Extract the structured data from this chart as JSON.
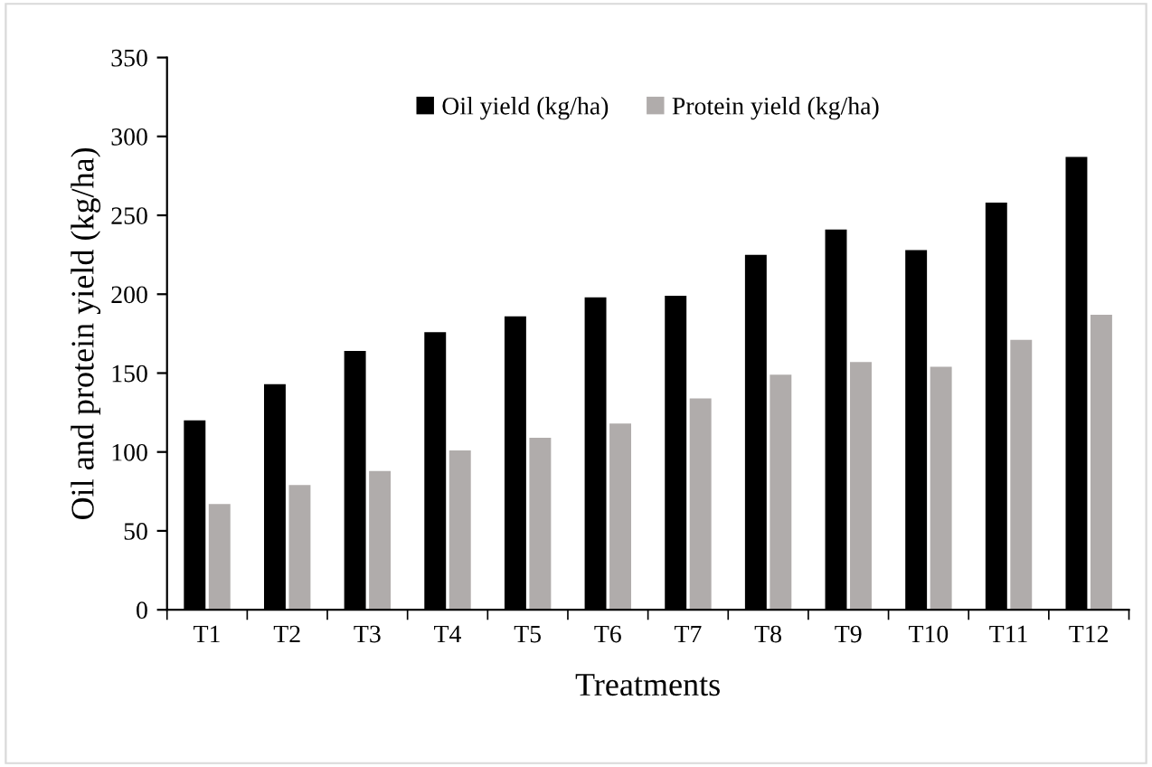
{
  "chart_data": {
    "type": "bar",
    "xlabel": "Treatments",
    "ylabel": "Oil and protein yield (kg/ha)",
    "categories": [
      "T1",
      "T2",
      "T3",
      "T4",
      "T5",
      "T6",
      "T7",
      "T8",
      "T9",
      "T10",
      "T11",
      "T12"
    ],
    "series": [
      {
        "name": "Oil yield (kg/ha)",
        "color": "#000000",
        "values": [
          120,
          143,
          164,
          176,
          186,
          198,
          199,
          225,
          241,
          228,
          258,
          287
        ]
      },
      {
        "name": "Protein yield (kg/ha)",
        "color": "#b0acab",
        "values": [
          67,
          79,
          88,
          101,
          109,
          118,
          134,
          149,
          157,
          154,
          171,
          187
        ]
      }
    ],
    "ylim": [
      0,
      350
    ],
    "yticks": [
      0,
      50,
      100,
      150,
      200,
      250,
      300,
      350
    ],
    "grid": false,
    "legend": "top"
  }
}
